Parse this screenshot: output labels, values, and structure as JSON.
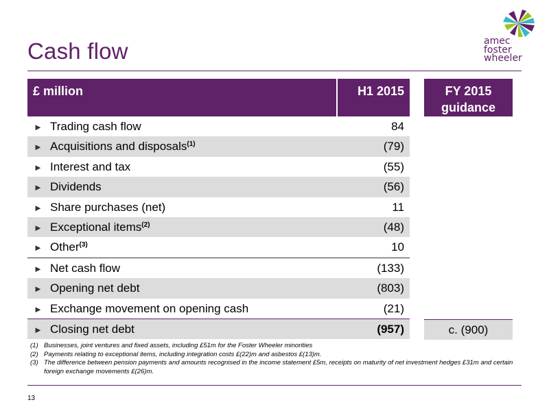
{
  "title": "Cash flow",
  "logo": {
    "lines": [
      "amec",
      "foster",
      "wheeler"
    ]
  },
  "table": {
    "header": {
      "label": "£ million",
      "h1": "H1 2015",
      "guidance": "FY 2015 guidance"
    },
    "rows": [
      {
        "label": "Trading cash flow",
        "sup": "",
        "value": "84"
      },
      {
        "label": "Acquisitions and disposals",
        "sup": "(1)",
        "value": "(79)"
      },
      {
        "label": "Interest and tax",
        "sup": "",
        "value": "(55)"
      },
      {
        "label": "Dividends",
        "sup": "",
        "value": "(56)"
      },
      {
        "label": "Share purchases (net)",
        "sup": "",
        "value": "11"
      },
      {
        "label": "Exceptional items",
        "sup": "(2)",
        "value": "(48)"
      },
      {
        "label": "Other",
        "sup": "(3)",
        "value": "10"
      },
      {
        "label": "Net cash flow",
        "sup": "",
        "value": "(133)"
      },
      {
        "label": "Opening net debt",
        "sup": "",
        "value": "(803)"
      },
      {
        "label": "Exchange movement on opening cash",
        "sup": "",
        "value": "(21)"
      },
      {
        "label": "Closing net debt",
        "sup": "",
        "value": "(957)"
      }
    ],
    "closing_guidance": "c. (900)"
  },
  "footnotes": [
    {
      "num": "(1)",
      "text": "Businesses, joint ventures and fixed assets, including £51m for the Foster Wheeler minorities"
    },
    {
      "num": "(2)",
      "text": "Payments relating to exceptional items, including integration costs £(22)m and asbestos £(13)m."
    },
    {
      "num": "(3)",
      "text": "The difference between pension payments and amounts recognised in the income statement £5m, receipts on maturity of net investment hedges £31m and certain foreign exchange movements £(26)m."
    }
  ],
  "page_number": "13",
  "colors": {
    "brand": "#5f2167",
    "row_alt": "#dcdcdc"
  },
  "icons": {
    "bullet": "triangle-right-icon"
  }
}
